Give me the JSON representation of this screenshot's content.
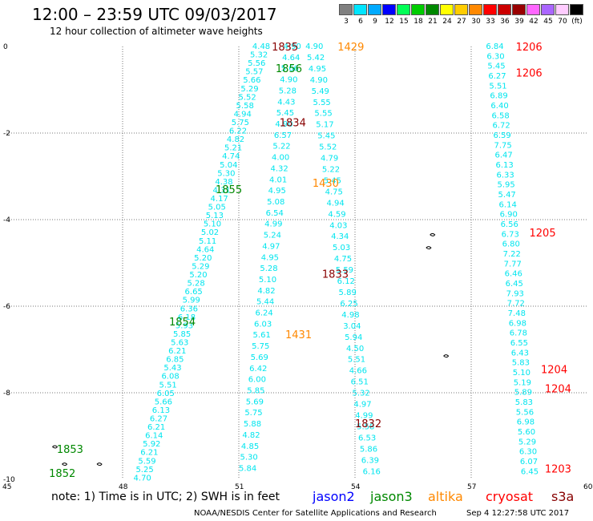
{
  "header": {
    "title": "12:00 – 23:59 UTC 09/03/2017",
    "subtitle": "12 hour collection of altimeter wave heights"
  },
  "colorbar": {
    "cells": [
      {
        "color": "#808080",
        "label": "3"
      },
      {
        "color": "#00e5ff",
        "label": "6"
      },
      {
        "color": "#00aaff",
        "label": "9"
      },
      {
        "color": "#0000ff",
        "label": "12"
      },
      {
        "color": "#00ff55",
        "label": "15"
      },
      {
        "color": "#00cc00",
        "label": "18"
      },
      {
        "color": "#008800",
        "label": "21"
      },
      {
        "color": "#ffff00",
        "label": "24"
      },
      {
        "color": "#ffcc00",
        "label": "27"
      },
      {
        "color": "#ff8800",
        "label": "30"
      },
      {
        "color": "#ff0000",
        "label": "33"
      },
      {
        "color": "#cc0000",
        "label": "36"
      },
      {
        "color": "#990000",
        "label": "39"
      },
      {
        "color": "#ff66ff",
        "label": "42"
      },
      {
        "color": "#aa66ff",
        "label": "45"
      },
      {
        "color": "#ffccff",
        "label": "70"
      },
      {
        "color": "#000000",
        "label": "(ft)"
      }
    ]
  },
  "axes": {
    "lat_labels": [
      "0",
      "-2",
      "-4",
      "-6",
      "-8",
      "-10"
    ],
    "lon_labels": [
      "45",
      "48",
      "51",
      "54",
      "57",
      "60"
    ],
    "lat_values": [
      0,
      -2,
      -4,
      -6,
      -8,
      -10
    ],
    "lon_values": [
      45,
      48,
      51,
      54,
      57,
      60
    ]
  },
  "tracks": [
    {
      "name": "track-1852",
      "color": "#00e5ee",
      "values": [
        "4.70",
        "5.25",
        "5.59",
        "6.21",
        "5.92",
        "6.14",
        "6.21",
        "6.27",
        "6.13",
        "5.66",
        "6.05",
        "5.51",
        "6.08",
        "5.43",
        "6.85",
        "6.21",
        "5.63",
        "5.85",
        "5.93",
        "6.18",
        "6.36",
        "5.99",
        "6.65",
        "5.28",
        "5.20",
        "5.29",
        "5.20",
        "4.64",
        "5.11",
        "5.02",
        "5.10",
        "5.13",
        "5.05",
        "4.17",
        "4.31",
        "4.38",
        "5.30",
        "5.04",
        "4.74",
        "5.21",
        "4.82",
        "6.22",
        "5.75",
        "4.94",
        "5.58",
        "5.52",
        "5.29",
        "5.66",
        "5.57",
        "5.56",
        "5.32",
        "4.48"
      ],
      "start": [
        -9.97,
        48.28
      ],
      "end": [
        0.0,
        51.35
      ]
    },
    {
      "name": "track-1853",
      "color": "#00e5ee",
      "values": [
        "5.84",
        "5.30",
        "4.85",
        "4.82",
        "5.88",
        "5.75",
        "5.69",
        "5.85",
        "6.00",
        "6.42",
        "5.69",
        "5.75",
        "5.61",
        "6.03",
        "6.24",
        "5.44",
        "4.82",
        "5.10",
        "5.28",
        "4.95",
        "4.97",
        "5.24",
        "4.99",
        "6.54",
        "5.08",
        "4.95",
        "4.01",
        "4.32",
        "4.00",
        "5.22",
        "6.57",
        "4.90",
        "5.45",
        "4.43",
        "5.28",
        "4.90",
        "5.66",
        "4.64",
        "4.90"
      ],
      "start": [
        -9.75,
        51.0
      ],
      "end": [
        0.0,
        52.15
      ]
    },
    {
      "name": "track-1854",
      "color": "#00e5ee",
      "values": [
        "6.16",
        "6.39",
        "5.86",
        "6.53",
        "5.58",
        "4.99",
        "4.97",
        "5.32",
        "6.51",
        "4.66",
        "5.51",
        "4.50",
        "5.94",
        "3.04",
        "4.98",
        "6.25",
        "5.89",
        "6.12",
        "5.59",
        "4.75",
        "5.03",
        "4.34",
        "4.03",
        "4.59",
        "4.94",
        "4.75",
        "5.45",
        "5.22",
        "4.79",
        "5.52",
        "5.45",
        "5.17",
        "5.55",
        "5.55",
        "5.49",
        "4.90",
        "4.95",
        "5.42",
        "4.90"
      ],
      "start": [
        -9.82,
        54.2
      ],
      "end": [
        0.0,
        52.72
      ]
    },
    {
      "name": "track-1855",
      "color": "#00e5ee",
      "values": [
        "6.45",
        "6.07",
        "6.30",
        "5.29",
        "5.60",
        "6.98",
        "5.56",
        "5.83",
        "5.89",
        "5.19",
        "5.10",
        "5.83",
        "6.43",
        "6.55",
        "6.78",
        "6.98",
        "7.48",
        "7.72",
        "7.93",
        "6.45",
        "6.46",
        "7.77",
        "7.22",
        "6.80",
        "6.73",
        "6.56",
        "6.90",
        "6.14",
        "5.47",
        "5.95",
        "6.33",
        "6.13",
        "6.47",
        "7.75",
        "6.59",
        "6.72",
        "6.58",
        "6.40",
        "6.89",
        "5.51",
        "6.27",
        "5.45",
        "6.30",
        "6.84"
      ],
      "start": [
        -9.82,
        58.28
      ],
      "end": [
        0.0,
        57.38
      ]
    }
  ],
  "labels": [
    {
      "text": "1835",
      "color": "#880000",
      "lat": 0.0,
      "lon": 51.85
    },
    {
      "text": "1429",
      "color": "#ff8800",
      "lat": 0.0,
      "lon": 53.55
    },
    {
      "text": "1856",
      "color": "#008800",
      "lat": -0.5,
      "lon": 51.95
    },
    {
      "text": "1834",
      "color": "#880000",
      "lat": -1.75,
      "lon": 52.05
    },
    {
      "text": "1430",
      "color": "#ff8800",
      "lat": -3.15,
      "lon": 52.9
    },
    {
      "text": "1855",
      "color": "#008800",
      "lat": -3.3,
      "lon": 50.4
    },
    {
      "text": "1833",
      "color": "#880000",
      "lat": -5.25,
      "lon": 53.15
    },
    {
      "text": "1854",
      "color": "#008800",
      "lat": -6.35,
      "lon": 49.2
    },
    {
      "text": "1431",
      "color": "#ff8800",
      "lat": -6.65,
      "lon": 52.2
    },
    {
      "text": "1832",
      "color": "#880000",
      "lat": -8.7,
      "lon": 54.0
    },
    {
      "text": "1853",
      "color": "#008800",
      "lat": -9.3,
      "lon": 46.3
    },
    {
      "text": "1852",
      "color": "#008800",
      "lat": -9.85,
      "lon": 46.1
    },
    {
      "text": "1206",
      "color": "#ff0000",
      "lat": 0.0,
      "lon": 58.15
    },
    {
      "text": "1206",
      "color": "#ff0000",
      "lat": -0.6,
      "lon": 58.15
    },
    {
      "text": "1205",
      "color": "#ff0000",
      "lat": -4.3,
      "lon": 58.5
    },
    {
      "text": "1204",
      "color": "#ff0000",
      "lat": -7.45,
      "lon": 58.8
    },
    {
      "text": "1204",
      "color": "#ff0000",
      "lat": -7.9,
      "lon": 58.9
    },
    {
      "text": "1203",
      "color": "#ff0000",
      "lat": -9.75,
      "lon": 58.9
    }
  ],
  "islands": [
    {
      "lat": -4.35,
      "lon": 56.0
    },
    {
      "lat": -4.65,
      "lon": 55.9
    },
    {
      "lat": -7.15,
      "lon": 56.35
    },
    {
      "lat": -9.25,
      "lon": 46.25
    },
    {
      "lat": -9.65,
      "lon": 46.5
    },
    {
      "lat": -9.65,
      "lon": 47.4
    }
  ],
  "footer": {
    "note": "note: 1) Time is in UTC; 2) SWH is in feet",
    "legend": [
      {
        "name": "jason2",
        "color": "#0000ff"
      },
      {
        "name": "jason3",
        "color": "#008800"
      },
      {
        "name": "altika",
        "color": "#ff8800"
      },
      {
        "name": "cryosat",
        "color": "#ff0000"
      },
      {
        "name": "s3a",
        "color": "#880000"
      }
    ],
    "credit": "NOAA/NESDIS Center for Satellite Applications and Research",
    "timestamp": "Sep  4 12:27:58 UTC 2017"
  }
}
